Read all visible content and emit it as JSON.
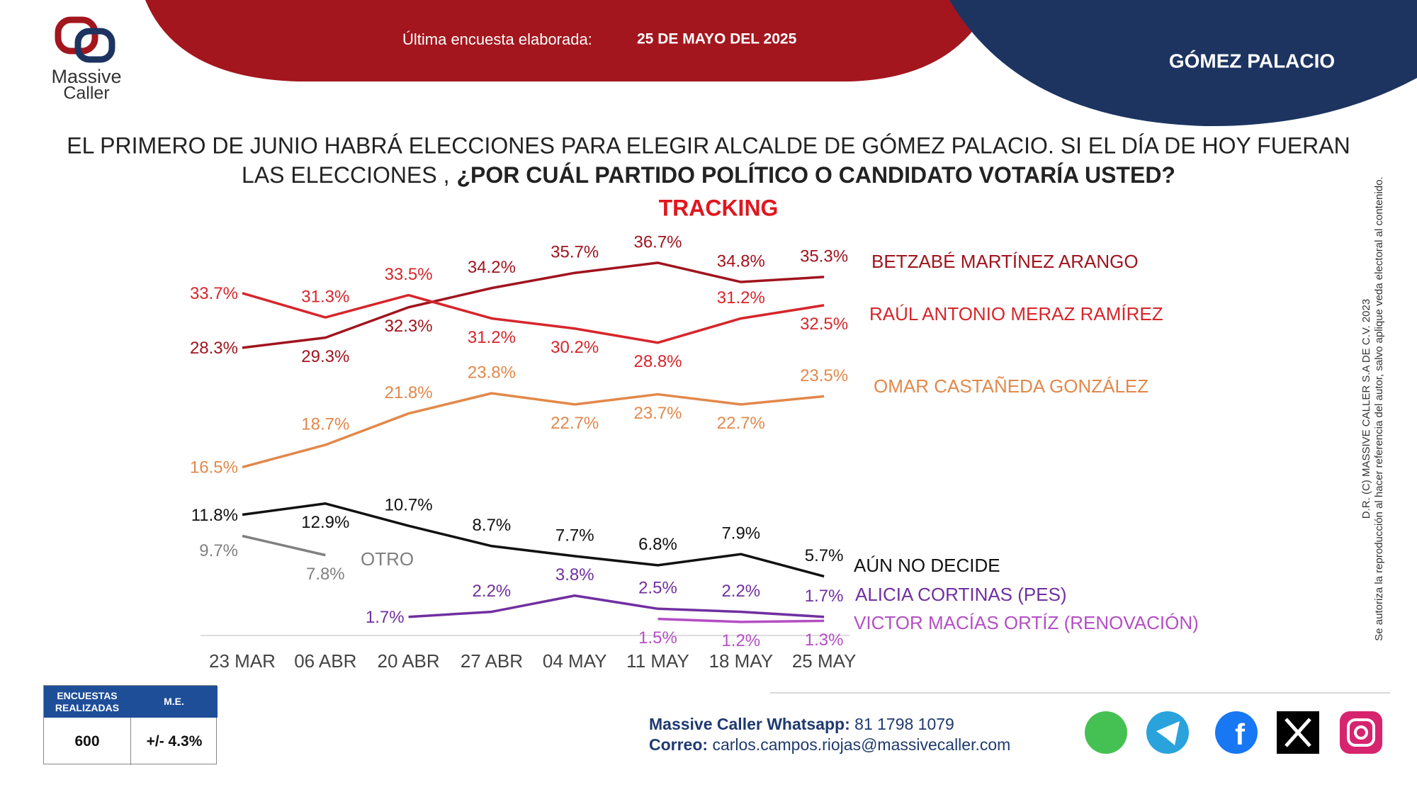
{
  "header": {
    "survey_label": "Última encuesta elaborada:",
    "survey_date": "25 DE MAYO DEL 2025",
    "region": "GÓMEZ PALACIO",
    "logo_line1": "Massive",
    "logo_line2": "Caller"
  },
  "question": {
    "line1": "EL PRIMERO DE JUNIO HABRÁ ELECCIONES PARA ELEGIR ALCALDE DE GÓMEZ PALACIO.  SI EL DÍA DE HOY FUERAN",
    "line2_plain": "LAS ELECCIONES ,",
    "line2_bold": "¿POR CUÁL PARTIDO POLÍTICO O CANDIDATO VOTARÍA USTED?"
  },
  "chart_data": {
    "type": "line",
    "title": "TRACKING",
    "categories": [
      "23 MAR",
      "06 ABR",
      "20 ABR",
      "27 ABR",
      "04 MAY",
      "11 MAY",
      "18 MAY",
      "25 MAY"
    ],
    "series": [
      {
        "name": "BETZABÉ MARTÍNEZ ARANGO",
        "color": "#a0141e",
        "values": [
          28.3,
          29.3,
          32.3,
          34.2,
          35.7,
          36.7,
          34.8,
          35.3
        ],
        "value_labels": [
          "28.3%",
          "29.3%",
          "32.3%",
          "34.2%",
          "35.7%",
          "36.7%",
          "34.8%",
          "35.3%"
        ]
      },
      {
        "name": "RAÚL ANTONIO MERAZ RAMÍREZ",
        "color": "#d6262b",
        "values": [
          33.7,
          31.3,
          33.5,
          31.2,
          30.2,
          28.8,
          31.2,
          32.5
        ],
        "value_labels": [
          "33.7%",
          "31.3%",
          "33.5%",
          "31.2%",
          "30.2%",
          "28.8%",
          "31.2%",
          "32.5%"
        ]
      },
      {
        "name": "OMAR CASTAÑEDA GONZÁLEZ",
        "color": "#e2884a",
        "values": [
          16.5,
          18.7,
          21.8,
          23.8,
          22.7,
          23.7,
          22.7,
          23.5
        ],
        "value_labels": [
          "16.5%",
          "18.7%",
          "21.8%",
          "23.8%",
          "22.7%",
          "23.7%",
          "22.7%",
          "23.5%"
        ]
      },
      {
        "name": "AÚN NO DECIDE",
        "color": "#111111",
        "values": [
          11.8,
          12.9,
          10.7,
          8.7,
          7.7,
          6.8,
          7.9,
          5.7
        ],
        "value_labels": [
          "11.8%",
          "12.9%",
          "10.7%",
          "8.7%",
          "7.7%",
          "6.8%",
          "7.9%",
          "5.7%"
        ]
      },
      {
        "name": "OTRO",
        "color": "#808080",
        "values": [
          9.7,
          7.8,
          null,
          null,
          null,
          null,
          null,
          null
        ],
        "value_labels": [
          "9.7%",
          "7.8%",
          null,
          null,
          null,
          null,
          null,
          null
        ]
      },
      {
        "name": "ALICIA CORTINAS (PES)",
        "color": "#7030a0",
        "values": [
          null,
          null,
          1.7,
          2.2,
          3.8,
          2.5,
          2.2,
          1.7
        ],
        "value_labels": [
          null,
          null,
          "1.7%",
          "2.2%",
          "3.8%",
          "2.5%",
          "2.2%",
          "1.7%"
        ]
      },
      {
        "name": "VICTOR MACÍAS ORTÍZ (RENOVACIÓN)",
        "color": "#b44fc4",
        "values": [
          null,
          null,
          null,
          null,
          null,
          1.5,
          1.2,
          1.3
        ],
        "value_labels": [
          null,
          null,
          null,
          null,
          null,
          "1.5%",
          "1.2%",
          "1.3%"
        ]
      }
    ]
  },
  "survey_table": {
    "headers": [
      "ENCUESTAS REALIZADAS",
      "M.E."
    ],
    "rows": [
      [
        "600",
        "+/- 4.3%"
      ]
    ]
  },
  "contact": {
    "whatsapp_label": "Massive Caller Whatsapp:",
    "whatsapp": "81 1798 1079",
    "email_label": "Correo:",
    "email": "carlos.campos.riojas@massivecaller.com"
  },
  "copyright": {
    "line1": "D.R. (C) MASSIVE CALLER S.A DE C.V. 2023",
    "line2": "Se autoriza la reproducción al hacer referencia del autor, salvo aplique veda electoral al contenido."
  }
}
